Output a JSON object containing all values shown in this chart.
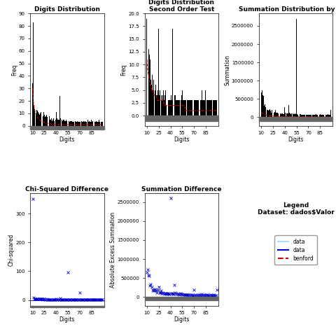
{
  "title1": "Digits Distribution",
  "title2": "Digits Distribution\nSecond Order Test",
  "title3": "Summation Distribution by digit",
  "title4": "Chi-Squared Difference",
  "title5": "Summation Difference",
  "legend_title": "Legend\nDataset: dados$Valor",
  "xlabel": "Digits",
  "ylabel1": "Freq",
  "ylabel2": "Freq",
  "ylabel3": "Summation",
  "ylabel4": "Chi-squared",
  "ylabel5": "Absolute Excess Summation",
  "xticks": [
    10,
    25,
    40,
    55,
    70,
    85
  ],
  "digits": [
    10,
    11,
    12,
    13,
    14,
    15,
    16,
    17,
    18,
    19,
    20,
    21,
    22,
    23,
    24,
    25,
    26,
    27,
    28,
    29,
    30,
    31,
    32,
    33,
    34,
    35,
    36,
    37,
    38,
    39,
    40,
    41,
    42,
    43,
    44,
    45,
    46,
    47,
    48,
    49,
    50,
    51,
    52,
    53,
    54,
    55,
    56,
    57,
    58,
    59,
    60,
    61,
    62,
    63,
    64,
    65,
    66,
    67,
    68,
    69,
    70,
    71,
    72,
    73,
    74,
    75,
    76,
    77,
    78,
    79,
    80,
    81,
    82,
    83,
    84,
    85,
    86,
    87,
    88,
    89,
    90,
    91,
    92,
    93,
    94,
    95,
    96,
    97,
    98,
    99
  ],
  "freq1": [
    34,
    83,
    16,
    12,
    10,
    13,
    12,
    11,
    10,
    9,
    10,
    11,
    9,
    8,
    11,
    9,
    7,
    8,
    9,
    7,
    6,
    8,
    5,
    5,
    6,
    4,
    5,
    6,
    4,
    5,
    11,
    6,
    5,
    5,
    5,
    24,
    6,
    5,
    4,
    5,
    5,
    4,
    4,
    5,
    4,
    5,
    4,
    3,
    4,
    4,
    4,
    3,
    3,
    3,
    4,
    3,
    3,
    4,
    3,
    3,
    3,
    3,
    4,
    3,
    3,
    4,
    3,
    4,
    3,
    3,
    5,
    3,
    4,
    3,
    3,
    5,
    3,
    4,
    3,
    3,
    3,
    4,
    3,
    3,
    3,
    5,
    3,
    3,
    3,
    3
  ],
  "freq2": [
    19,
    14,
    13,
    12,
    11,
    7,
    6,
    8,
    5,
    7,
    5,
    6,
    4,
    4,
    5,
    17,
    4,
    5,
    4,
    3,
    4,
    5,
    3,
    4,
    5,
    2,
    4,
    3,
    3,
    3,
    3,
    4,
    3,
    17,
    3,
    4,
    4,
    3,
    3,
    3,
    3,
    3,
    3,
    3,
    4,
    5,
    3,
    3,
    3,
    3,
    3,
    3,
    3,
    3,
    3,
    3,
    3,
    3,
    3,
    3,
    3,
    3,
    3,
    3,
    3,
    3,
    3,
    3,
    3,
    3,
    5,
    3,
    3,
    3,
    3,
    5,
    3,
    3,
    3,
    3,
    3,
    3,
    3,
    3,
    3,
    3,
    3,
    3,
    3,
    3
  ],
  "summation": [
    670000,
    730000,
    600000,
    580000,
    320000,
    350000,
    280000,
    200000,
    190000,
    180000,
    200000,
    220000,
    180000,
    130000,
    200000,
    280000,
    130000,
    140000,
    190000,
    120000,
    130000,
    120000,
    100000,
    110000,
    110000,
    90000,
    110000,
    110000,
    90000,
    90000,
    280000,
    120000,
    110000,
    100000,
    100000,
    330000,
    130000,
    110000,
    90000,
    100000,
    100000,
    80000,
    90000,
    110000,
    90000,
    2700000,
    80000,
    70000,
    80000,
    80000,
    80000,
    70000,
    70000,
    60000,
    70000,
    70000,
    60000,
    70000,
    60000,
    60000,
    60000,
    60000,
    70000,
    60000,
    60000,
    70000,
    60000,
    70000,
    60000,
    60000,
    90000,
    60000,
    70000,
    60000,
    60000,
    80000,
    60000,
    70000,
    60000,
    60000,
    60000,
    70000,
    60000,
    60000,
    60000,
    80000,
    60000,
    60000,
    60000,
    200000
  ],
  "chi_squared": [
    350,
    8,
    5,
    4,
    3,
    5,
    4,
    4,
    3,
    3,
    3,
    4,
    3,
    2,
    4,
    3,
    2,
    2,
    3,
    2,
    1,
    2,
    1,
    1,
    2,
    1,
    1,
    2,
    1,
    1,
    3,
    1,
    1,
    1,
    1,
    7,
    1,
    1,
    1,
    1,
    1,
    1,
    1,
    1,
    1,
    95,
    1,
    1,
    1,
    1,
    1,
    1,
    1,
    1,
    1,
    1,
    1,
    1,
    1,
    1,
    25,
    1,
    1,
    1,
    1,
    1,
    1,
    1,
    1,
    1,
    1,
    1,
    1,
    1,
    1,
    1,
    1,
    1,
    1,
    1,
    1,
    1,
    1,
    1,
    1,
    1,
    1,
    1,
    1,
    1
  ],
  "summ_diff": [
    650000,
    720000,
    580000,
    560000,
    300000,
    330000,
    260000,
    180000,
    170000,
    160000,
    180000,
    200000,
    160000,
    110000,
    180000,
    260000,
    110000,
    120000,
    170000,
    100000,
    110000,
    100000,
    80000,
    90000,
    90000,
    70000,
    90000,
    90000,
    70000,
    70000,
    2600000,
    100000,
    90000,
    80000,
    80000,
    310000,
    110000,
    90000,
    70000,
    80000,
    80000,
    60000,
    70000,
    90000,
    70000,
    80000,
    60000,
    50000,
    60000,
    60000,
    60000,
    50000,
    50000,
    40000,
    50000,
    50000,
    40000,
    50000,
    40000,
    40000,
    180000,
    40000,
    50000,
    40000,
    40000,
    50000,
    40000,
    50000,
    40000,
    40000,
    70000,
    40000,
    50000,
    40000,
    40000,
    60000,
    40000,
    50000,
    40000,
    40000,
    40000,
    50000,
    40000,
    40000,
    40000,
    60000,
    40000,
    40000,
    40000,
    180000
  ],
  "benford1": [
    30,
    19,
    15,
    12,
    10,
    8,
    7,
    6,
    5,
    5,
    4,
    4,
    3,
    3,
    3,
    3,
    2,
    2,
    2,
    2,
    2,
    2,
    2,
    2,
    1,
    1,
    1,
    1,
    1,
    1,
    1,
    1,
    1,
    1,
    1,
    1,
    1,
    1,
    1,
    1,
    1,
    1,
    1,
    1,
    1,
    1,
    1,
    1,
    1,
    1,
    1,
    1,
    1,
    1,
    1,
    1,
    1,
    1,
    1,
    1,
    1,
    1,
    1,
    1,
    1,
    1,
    1,
    1,
    1,
    1,
    1,
    1,
    1,
    1,
    1,
    1,
    1,
    1,
    1,
    1,
    1,
    1,
    1,
    1,
    1,
    1,
    1,
    1,
    1,
    1
  ],
  "benford2": [
    11,
    9,
    8,
    7,
    6,
    6,
    5,
    5,
    5,
    4,
    4,
    4,
    4,
    3,
    3,
    3,
    3,
    3,
    3,
    3,
    3,
    3,
    2,
    2,
    2,
    2,
    2,
    2,
    2,
    2,
    2,
    2,
    2,
    2,
    2,
    2,
    2,
    2,
    2,
    2,
    2,
    2,
    2,
    2,
    2,
    2,
    2,
    2,
    2,
    1,
    1,
    1,
    1,
    1,
    1,
    1,
    1,
    1,
    1,
    1,
    1,
    1,
    1,
    1,
    1,
    1,
    1,
    1,
    1,
    1,
    1,
    1,
    1,
    1,
    1,
    1,
    1,
    1,
    1,
    1,
    1,
    1,
    1,
    1,
    1,
    1,
    1,
    1,
    1,
    1
  ],
  "benford_sum": [
    130000,
    110000,
    95000,
    82000,
    72000,
    64000,
    58000,
    53000,
    48000,
    44000,
    41000,
    38000,
    36000,
    33000,
    31000,
    29000,
    28000,
    26000,
    25000,
    24000,
    22000,
    21000,
    20000,
    20000,
    19000,
    18000,
    17000,
    17000,
    16000,
    15000,
    15000,
    14000,
    14000,
    13000,
    13000,
    12000,
    12000,
    12000,
    11000,
    11000,
    11000,
    10000,
    10000,
    10000,
    10000,
    9000,
    9000,
    9000,
    9000,
    9000,
    8000,
    8000,
    8000,
    8000,
    8000,
    7000,
    7000,
    7000,
    7000,
    7000,
    7000,
    7000,
    7000,
    7000,
    6000,
    6000,
    6000,
    6000,
    6000,
    6000,
    6000,
    6000,
    6000,
    5000,
    5000,
    5000,
    5000,
    5000,
    5000,
    5000,
    5000,
    5000,
    5000,
    5000,
    5000,
    5000,
    5000,
    4000,
    4000,
    4000
  ],
  "bg_color": "#ffffff",
  "bar_color": "black",
  "benford_color": "#cc0000",
  "scatter_color": "#0000cc",
  "legend_line1_color": "#aaddff",
  "legend_line2_color": "#0000cc",
  "legend_dash_color": "#cc0000"
}
